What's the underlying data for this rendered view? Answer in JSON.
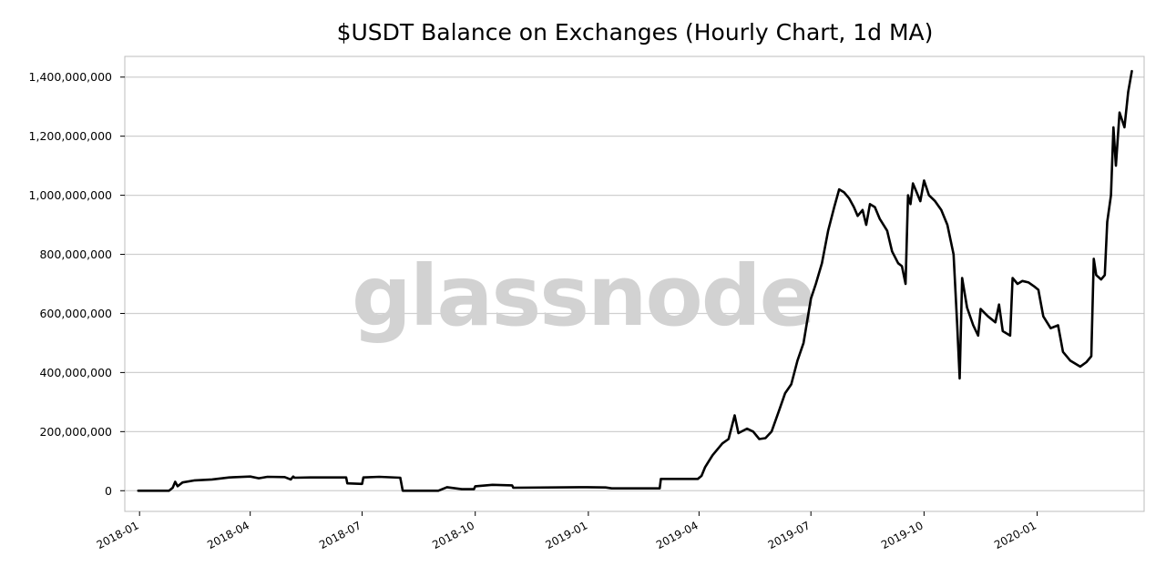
{
  "chart_data": {
    "type": "line",
    "title": "$USDT Balance on Exchanges (Hourly Chart, 1d MA)",
    "watermark": "glassnode",
    "xlabel": "",
    "ylabel": "",
    "ylim": [
      -70000000,
      1470000000
    ],
    "xlim": [
      "2017-12-20",
      "2020-03-28"
    ],
    "grid": "horizontal",
    "y_ticks": [
      {
        "value": 0,
        "label": "0"
      },
      {
        "value": 200000000,
        "label": "200,000,000"
      },
      {
        "value": 400000000,
        "label": "400,000,000"
      },
      {
        "value": 600000000,
        "label": "600,000,000"
      },
      {
        "value": 800000000,
        "label": "800,000,000"
      },
      {
        "value": 1000000000,
        "label": "1,000,000,000"
      },
      {
        "value": 1200000000,
        "label": "1,200,000,000"
      },
      {
        "value": 1400000000,
        "label": "1,400,000,000"
      }
    ],
    "x_ticks": [
      {
        "date": "2018-01-01",
        "label": "2018-01"
      },
      {
        "date": "2018-04-01",
        "label": "2018-04"
      },
      {
        "date": "2018-07-01",
        "label": "2018-07"
      },
      {
        "date": "2018-10-01",
        "label": "2018-10"
      },
      {
        "date": "2019-01-01",
        "label": "2019-01"
      },
      {
        "date": "2019-04-01",
        "label": "2019-04"
      },
      {
        "date": "2019-07-01",
        "label": "2019-07"
      },
      {
        "date": "2019-10-01",
        "label": "2019-10"
      },
      {
        "date": "2020-01-01",
        "label": "2020-01"
      }
    ],
    "series": [
      {
        "color": "#000000",
        "points": [
          [
            "2017-12-31",
            0
          ],
          [
            "2018-01-25",
            0
          ],
          [
            "2018-01-28",
            10000000
          ],
          [
            "2018-01-30",
            30000000
          ],
          [
            "2018-02-01",
            15000000
          ],
          [
            "2018-02-05",
            28000000
          ],
          [
            "2018-02-15",
            35000000
          ],
          [
            "2018-03-01",
            38000000
          ],
          [
            "2018-03-15",
            45000000
          ],
          [
            "2018-04-01",
            48000000
          ],
          [
            "2018-04-08",
            42000000
          ],
          [
            "2018-04-15",
            47000000
          ],
          [
            "2018-04-29",
            46000000
          ],
          [
            "2018-05-04",
            38000000
          ],
          [
            "2018-05-06",
            48000000
          ],
          [
            "2018-05-07",
            44000000
          ],
          [
            "2018-05-20",
            45000000
          ],
          [
            "2018-06-18",
            45000000
          ],
          [
            "2018-06-19",
            25000000
          ],
          [
            "2018-07-01",
            23000000
          ],
          [
            "2018-07-02",
            45000000
          ],
          [
            "2018-07-15",
            47000000
          ],
          [
            "2018-08-01",
            44000000
          ],
          [
            "2018-08-03",
            0
          ],
          [
            "2018-09-01",
            0
          ],
          [
            "2018-09-08",
            12000000
          ],
          [
            "2018-09-20",
            5000000
          ],
          [
            "2018-09-30",
            5000000
          ],
          [
            "2018-10-01",
            15000000
          ],
          [
            "2018-10-15",
            20000000
          ],
          [
            "2018-10-31",
            18000000
          ],
          [
            "2018-11-01",
            10000000
          ],
          [
            "2018-12-31",
            12000000
          ],
          [
            "2019-01-15",
            11000000
          ],
          [
            "2019-01-20",
            8000000
          ],
          [
            "2019-02-28",
            8000000
          ],
          [
            "2019-03-01",
            40000000
          ],
          [
            "2019-03-31",
            40000000
          ],
          [
            "2019-04-03",
            50000000
          ],
          [
            "2019-04-06",
            80000000
          ],
          [
            "2019-04-12",
            120000000
          ],
          [
            "2019-04-20",
            160000000
          ],
          [
            "2019-04-25",
            175000000
          ],
          [
            "2019-04-30",
            255000000
          ],
          [
            "2019-05-03",
            195000000
          ],
          [
            "2019-05-10",
            210000000
          ],
          [
            "2019-05-15",
            200000000
          ],
          [
            "2019-05-20",
            175000000
          ],
          [
            "2019-05-25",
            178000000
          ],
          [
            "2019-05-30",
            200000000
          ],
          [
            "2019-06-05",
            270000000
          ],
          [
            "2019-06-10",
            330000000
          ],
          [
            "2019-06-15",
            360000000
          ],
          [
            "2019-06-20",
            440000000
          ],
          [
            "2019-06-25",
            500000000
          ],
          [
            "2019-07-01",
            650000000
          ],
          [
            "2019-07-05",
            700000000
          ],
          [
            "2019-07-10",
            770000000
          ],
          [
            "2019-07-15",
            880000000
          ],
          [
            "2019-07-20",
            960000000
          ],
          [
            "2019-07-24",
            1020000000
          ],
          [
            "2019-07-28",
            1010000000
          ],
          [
            "2019-08-01",
            990000000
          ],
          [
            "2019-08-05",
            960000000
          ],
          [
            "2019-08-08",
            930000000
          ],
          [
            "2019-08-12",
            950000000
          ],
          [
            "2019-08-15",
            900000000
          ],
          [
            "2019-08-18",
            970000000
          ],
          [
            "2019-08-22",
            960000000
          ],
          [
            "2019-08-26",
            920000000
          ],
          [
            "2019-09-01",
            880000000
          ],
          [
            "2019-09-05",
            810000000
          ],
          [
            "2019-09-10",
            770000000
          ],
          [
            "2019-09-13",
            760000000
          ],
          [
            "2019-09-16",
            700000000
          ],
          [
            "2019-09-18",
            1000000000
          ],
          [
            "2019-09-20",
            970000000
          ],
          [
            "2019-09-22",
            1040000000
          ],
          [
            "2019-09-25",
            1010000000
          ],
          [
            "2019-09-28",
            980000000
          ],
          [
            "2019-10-01",
            1050000000
          ],
          [
            "2019-10-05",
            1000000000
          ],
          [
            "2019-10-10",
            980000000
          ],
          [
            "2019-10-15",
            950000000
          ],
          [
            "2019-10-20",
            900000000
          ],
          [
            "2019-10-25",
            800000000
          ],
          [
            "2019-10-28",
            560000000
          ],
          [
            "2019-10-30",
            380000000
          ],
          [
            "2019-11-01",
            720000000
          ],
          [
            "2019-11-05",
            620000000
          ],
          [
            "2019-11-10",
            560000000
          ],
          [
            "2019-11-14",
            525000000
          ],
          [
            "2019-11-16",
            615000000
          ],
          [
            "2019-11-22",
            590000000
          ],
          [
            "2019-11-28",
            570000000
          ],
          [
            "2019-12-01",
            630000000
          ],
          [
            "2019-12-04",
            540000000
          ],
          [
            "2019-12-10",
            525000000
          ],
          [
            "2019-12-12",
            720000000
          ],
          [
            "2019-12-16",
            700000000
          ],
          [
            "2019-12-20",
            710000000
          ],
          [
            "2019-12-25",
            705000000
          ],
          [
            "2019-12-30",
            690000000
          ],
          [
            "2020-01-02",
            680000000
          ],
          [
            "2020-01-06",
            590000000
          ],
          [
            "2020-01-12",
            550000000
          ],
          [
            "2020-01-18",
            560000000
          ],
          [
            "2020-01-22",
            470000000
          ],
          [
            "2020-01-28",
            440000000
          ],
          [
            "2020-02-05",
            420000000
          ],
          [
            "2020-02-10",
            435000000
          ],
          [
            "2020-02-14",
            455000000
          ],
          [
            "2020-02-16",
            785000000
          ],
          [
            "2020-02-18",
            730000000
          ],
          [
            "2020-02-22",
            715000000
          ],
          [
            "2020-02-25",
            730000000
          ],
          [
            "2020-02-27",
            910000000
          ],
          [
            "2020-03-01",
            1000000000
          ],
          [
            "2020-03-03",
            1230000000
          ],
          [
            "2020-03-05",
            1100000000
          ],
          [
            "2020-03-08",
            1280000000
          ],
          [
            "2020-03-12",
            1230000000
          ],
          [
            "2020-03-15",
            1350000000
          ],
          [
            "2020-03-18",
            1420000000
          ]
        ]
      }
    ]
  }
}
